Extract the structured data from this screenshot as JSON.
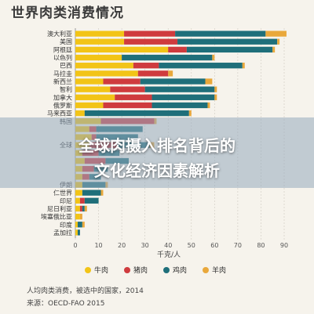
{
  "title": "世界肉类消费情况",
  "overlay": {
    "line1": "全球肉摄入排名背后的",
    "line2": "文化经济因素解析"
  },
  "axis_unit": "千克/人",
  "footnote": {
    "line1": "人均肉类消费，被选中的国家，2014",
    "line2": "来源：OECD-FAO 2015"
  },
  "colors": {
    "beef": "#f2c417",
    "pork": "#cf3b3e",
    "poultry": "#1f6f7a",
    "mutton": "#e9a83b",
    "overlay": "#96aabe"
  },
  "chart_data": {
    "type": "bar",
    "orientation": "horizontal",
    "stacked": true,
    "title": "世界肉类消费情况",
    "xlabel": "千克/人",
    "xlim": [
      0,
      90
    ],
    "xticks": [
      0,
      10,
      20,
      30,
      40,
      50,
      60,
      70,
      80,
      90
    ],
    "grid": true,
    "legend_position": "bottom",
    "categories": [
      "澳大利亚",
      "美国",
      "阿根廷",
      "以色列",
      "巴西",
      "马拉圭",
      "新西兰",
      "智利",
      "加拿大",
      "俄罗斯",
      "马来西亚",
      "韩国",
      "",
      "",
      "全球",
      "",
      "",
      "",
      "",
      "伊朗",
      "仁世界",
      "印尼",
      "尼日利亚",
      "埃塞俄比亚",
      "印度",
      "孟加拉"
    ],
    "series": [
      {
        "name": "牛肉",
        "values": [
          21,
          21,
          40,
          20,
          25,
          27,
          12,
          15,
          17,
          12,
          4,
          11,
          6,
          7,
          6,
          3,
          4,
          3,
          3,
          3,
          3,
          2,
          2,
          2,
          1,
          1
        ]
      },
      {
        "name": "猪肉",
        "values": [
          22,
          23,
          8,
          0,
          11,
          13,
          16,
          15,
          16,
          21,
          0,
          23,
          3,
          2,
          12,
          7,
          9,
          5,
          3,
          0,
          0,
          2,
          1,
          0,
          0,
          0
        ]
      },
      {
        "name": "鸡肉",
        "values": [
          39,
          43,
          37,
          39,
          36,
          0,
          28,
          30,
          27,
          24,
          45,
          0,
          20,
          18,
          14,
          9,
          10,
          6,
          5,
          10,
          8,
          6,
          1,
          0,
          2,
          1
        ]
      },
      {
        "name": "羊肉",
        "values": [
          9,
          1,
          1,
          1,
          1,
          2,
          3,
          1,
          1,
          1,
          1,
          1,
          0,
          0,
          2,
          0,
          0,
          0,
          0,
          1,
          1,
          0,
          1,
          1,
          1,
          0
        ]
      }
    ]
  }
}
